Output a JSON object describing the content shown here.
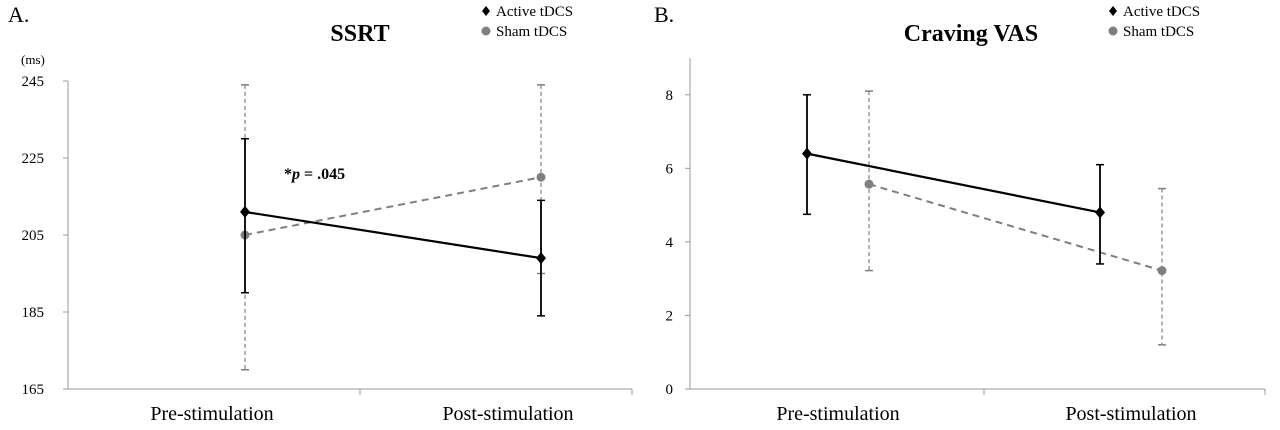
{
  "chart_data": [
    {
      "type": "line",
      "panel_label": "A.",
      "title": "SSRT",
      "ylabel": "(ms)",
      "categories": [
        "Pre-stimulation",
        "Post-stimulation"
      ],
      "ylim": [
        165,
        245
      ],
      "yticks": [
        "165",
        "185",
        "205",
        "225",
        "245"
      ],
      "grid": false,
      "legend_position": "top-right",
      "annotation": {
        "prefix": "*",
        "italic": "p",
        "suffix": " = .045"
      },
      "series": [
        {
          "name": "Active tDCS",
          "marker": "diamond",
          "style": "solid",
          "color": "#000000",
          "values": [
            211,
            199
          ],
          "err_low": [
            190,
            184
          ],
          "err_high": [
            230,
            214
          ]
        },
        {
          "name": "Sham tDCS",
          "marker": "circle",
          "style": "dashed",
          "color": "#7f7f7f",
          "values": [
            205,
            220
          ],
          "err_low": [
            170,
            195
          ],
          "err_high": [
            244,
            244
          ]
        }
      ]
    },
    {
      "type": "line",
      "panel_label": "B.",
      "title": "Craving VAS",
      "ylabel": "",
      "categories": [
        "Pre-stimulation",
        "Post-stimulation"
      ],
      "ylim": [
        0,
        9
      ],
      "yticks": [
        "0",
        "2",
        "4",
        "6",
        "8"
      ],
      "grid": false,
      "legend_position": "top-right",
      "series": [
        {
          "name": "Active tDCS",
          "marker": "diamond",
          "style": "solid",
          "color": "#000000",
          "values": [
            6.4,
            4.8
          ],
          "err_low": [
            4.75,
            3.4
          ],
          "err_high": [
            8.0,
            6.1
          ]
        },
        {
          "name": "Sham tDCS",
          "marker": "circle",
          "style": "dashed",
          "color": "#7f7f7f",
          "values": [
            5.57,
            3.22
          ],
          "err_low": [
            3.22,
            1.2
          ],
          "err_high": [
            8.1,
            5.45
          ]
        }
      ]
    }
  ]
}
